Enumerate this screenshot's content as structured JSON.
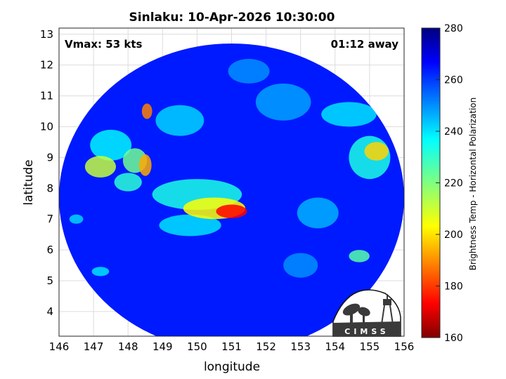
{
  "chart_data": {
    "type": "heatmap",
    "title": "Sinlaku: 10-Apr-2026 10:30:00",
    "xlabel": "longitude",
    "ylabel": "latitude",
    "xlim": [
      146,
      156
    ],
    "ylim": [
      3.2,
      13.2
    ],
    "xticks": [
      "146",
      "147",
      "148",
      "149",
      "150",
      "151",
      "152",
      "153",
      "154",
      "155",
      "156"
    ],
    "yticks": [
      "4",
      "5",
      "6",
      "7",
      "8",
      "9",
      "10",
      "11",
      "12",
      "13"
    ],
    "grid": true,
    "annotation_left": "Vmax: 53 kts",
    "annotation_right": "01:12 away",
    "colorbar": {
      "label": "Brightness Temp - Horizontal Polarization",
      "range": [
        160,
        280
      ],
      "ticks": [
        "280",
        "260",
        "240",
        "220",
        "200",
        "180",
        "160"
      ],
      "colormap": "jet"
    },
    "swath": {
      "center_lon": 151.0,
      "center_lat": 7.7,
      "radius_deg_lon": 5.0,
      "radius_deg_lat": 5.0
    },
    "background_value": 262,
    "features": [
      {
        "lon": 151.0,
        "lat": 7.25,
        "r_lon": 0.45,
        "r_lat": 0.22,
        "value": 175
      },
      {
        "lon": 150.5,
        "lat": 7.35,
        "r_lon": 0.9,
        "r_lat": 0.35,
        "value": 205
      },
      {
        "lon": 150.0,
        "lat": 7.8,
        "r_lon": 1.3,
        "r_lat": 0.5,
        "value": 232
      },
      {
        "lon": 149.8,
        "lat": 6.8,
        "r_lon": 0.9,
        "r_lat": 0.35,
        "value": 238
      },
      {
        "lon": 148.55,
        "lat": 10.5,
        "r_lon": 0.15,
        "r_lat": 0.25,
        "value": 190
      },
      {
        "lon": 148.5,
        "lat": 8.75,
        "r_lon": 0.18,
        "r_lat": 0.35,
        "value": 195
      },
      {
        "lon": 148.2,
        "lat": 8.9,
        "r_lon": 0.35,
        "r_lat": 0.4,
        "value": 222
      },
      {
        "lon": 147.2,
        "lat": 8.7,
        "r_lon": 0.45,
        "r_lat": 0.35,
        "value": 212
      },
      {
        "lon": 147.5,
        "lat": 9.4,
        "r_lon": 0.6,
        "r_lat": 0.5,
        "value": 236
      },
      {
        "lon": 148.0,
        "lat": 8.2,
        "r_lon": 0.4,
        "r_lat": 0.3,
        "value": 230
      },
      {
        "lon": 149.5,
        "lat": 10.2,
        "r_lon": 0.7,
        "r_lat": 0.5,
        "value": 240
      },
      {
        "lon": 155.2,
        "lat": 9.2,
        "r_lon": 0.35,
        "r_lat": 0.3,
        "value": 200
      },
      {
        "lon": 155.0,
        "lat": 9.0,
        "r_lon": 0.6,
        "r_lat": 0.7,
        "value": 232
      },
      {
        "lon": 154.4,
        "lat": 10.4,
        "r_lon": 0.8,
        "r_lat": 0.4,
        "value": 238
      },
      {
        "lon": 154.7,
        "lat": 5.8,
        "r_lon": 0.3,
        "r_lat": 0.2,
        "value": 225
      },
      {
        "lon": 153.5,
        "lat": 7.2,
        "r_lon": 0.6,
        "r_lat": 0.5,
        "value": 244
      },
      {
        "lon": 152.5,
        "lat": 10.8,
        "r_lon": 0.8,
        "r_lat": 0.6,
        "value": 246
      },
      {
        "lon": 147.2,
        "lat": 5.3,
        "r_lon": 0.25,
        "r_lat": 0.15,
        "value": 238
      },
      {
        "lon": 146.5,
        "lat": 7.0,
        "r_lon": 0.2,
        "r_lat": 0.15,
        "value": 240
      },
      {
        "lon": 151.5,
        "lat": 11.8,
        "r_lon": 0.6,
        "r_lat": 0.4,
        "value": 248
      },
      {
        "lon": 153.0,
        "lat": 5.5,
        "r_lon": 0.5,
        "r_lat": 0.4,
        "value": 248
      }
    ]
  },
  "logo": {
    "text": "CIMSS"
  }
}
